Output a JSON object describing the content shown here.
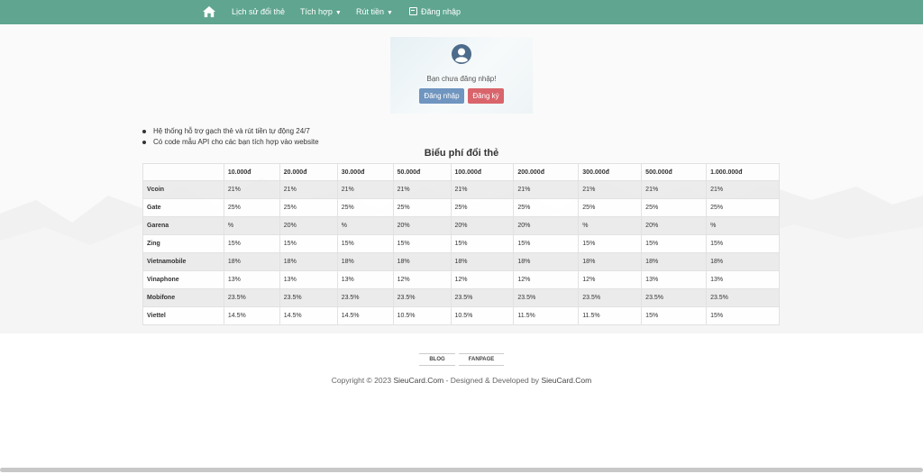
{
  "nav": {
    "home_icon": "home-icon",
    "items": [
      {
        "label": "Lịch sử đổi thẻ"
      },
      {
        "label": "Tích hợp"
      },
      {
        "label": "Rút tiền"
      },
      {
        "label": "Đăng nhập"
      }
    ]
  },
  "login_card": {
    "message": "Bạn chưa đăng nhập!",
    "login_label": "Đăng nhập",
    "register_label": "Đăng ký"
  },
  "features": [
    "Hệ thống hỗ trợ gạch thẻ và rút tiền tự động 24/7",
    "Có code mẫu API cho các bạn tích hợp vào website"
  ],
  "fee_table": {
    "title": "Biểu phí đổi thẻ",
    "headers": [
      "",
      "10.000đ",
      "20.000đ",
      "30.000đ",
      "50.000đ",
      "100.000đ",
      "200.000đ",
      "300.000đ",
      "500.000đ",
      "1.000.000đ"
    ],
    "rows": [
      {
        "network": "Vcoin",
        "rates": [
          "21%",
          "21%",
          "21%",
          "21%",
          "21%",
          "21%",
          "21%",
          "21%",
          "21%"
        ]
      },
      {
        "network": "Gate",
        "rates": [
          "25%",
          "25%",
          "25%",
          "25%",
          "25%",
          "25%",
          "25%",
          "25%",
          "25%"
        ]
      },
      {
        "network": "Garena",
        "rates": [
          "%",
          "20%",
          "%",
          "20%",
          "20%",
          "20%",
          "%",
          "20%",
          "%"
        ]
      },
      {
        "network": "Zing",
        "rates": [
          "15%",
          "15%",
          "15%",
          "15%",
          "15%",
          "15%",
          "15%",
          "15%",
          "15%"
        ]
      },
      {
        "network": "Vietnamobile",
        "rates": [
          "18%",
          "18%",
          "18%",
          "18%",
          "18%",
          "18%",
          "18%",
          "18%",
          "18%"
        ]
      },
      {
        "network": "Vinaphone",
        "rates": [
          "13%",
          "13%",
          "13%",
          "12%",
          "12%",
          "12%",
          "12%",
          "13%",
          "13%"
        ]
      },
      {
        "network": "Mobifone",
        "rates": [
          "23.5%",
          "23.5%",
          "23.5%",
          "23.5%",
          "23.5%",
          "23.5%",
          "23.5%",
          "23.5%",
          "23.5%"
        ]
      },
      {
        "network": "Viettel",
        "rates": [
          "14.5%",
          "14.5%",
          "14.5%",
          "10.5%",
          "10.5%",
          "11.5%",
          "11.5%",
          "15%",
          "15%"
        ]
      }
    ]
  },
  "footer": {
    "links": [
      {
        "label": "BLOG"
      },
      {
        "label": "FANPAGE"
      }
    ],
    "copyright_prefix": "Copyright © 2023",
    "brand1": "SieuCard.Com",
    "middle": "- Designed & Developed by",
    "brand2": "SieuCard.Com"
  },
  "colors": {
    "nav": "#5fa58f",
    "login_button": "#6f95c0",
    "register_button": "#d9646b"
  }
}
